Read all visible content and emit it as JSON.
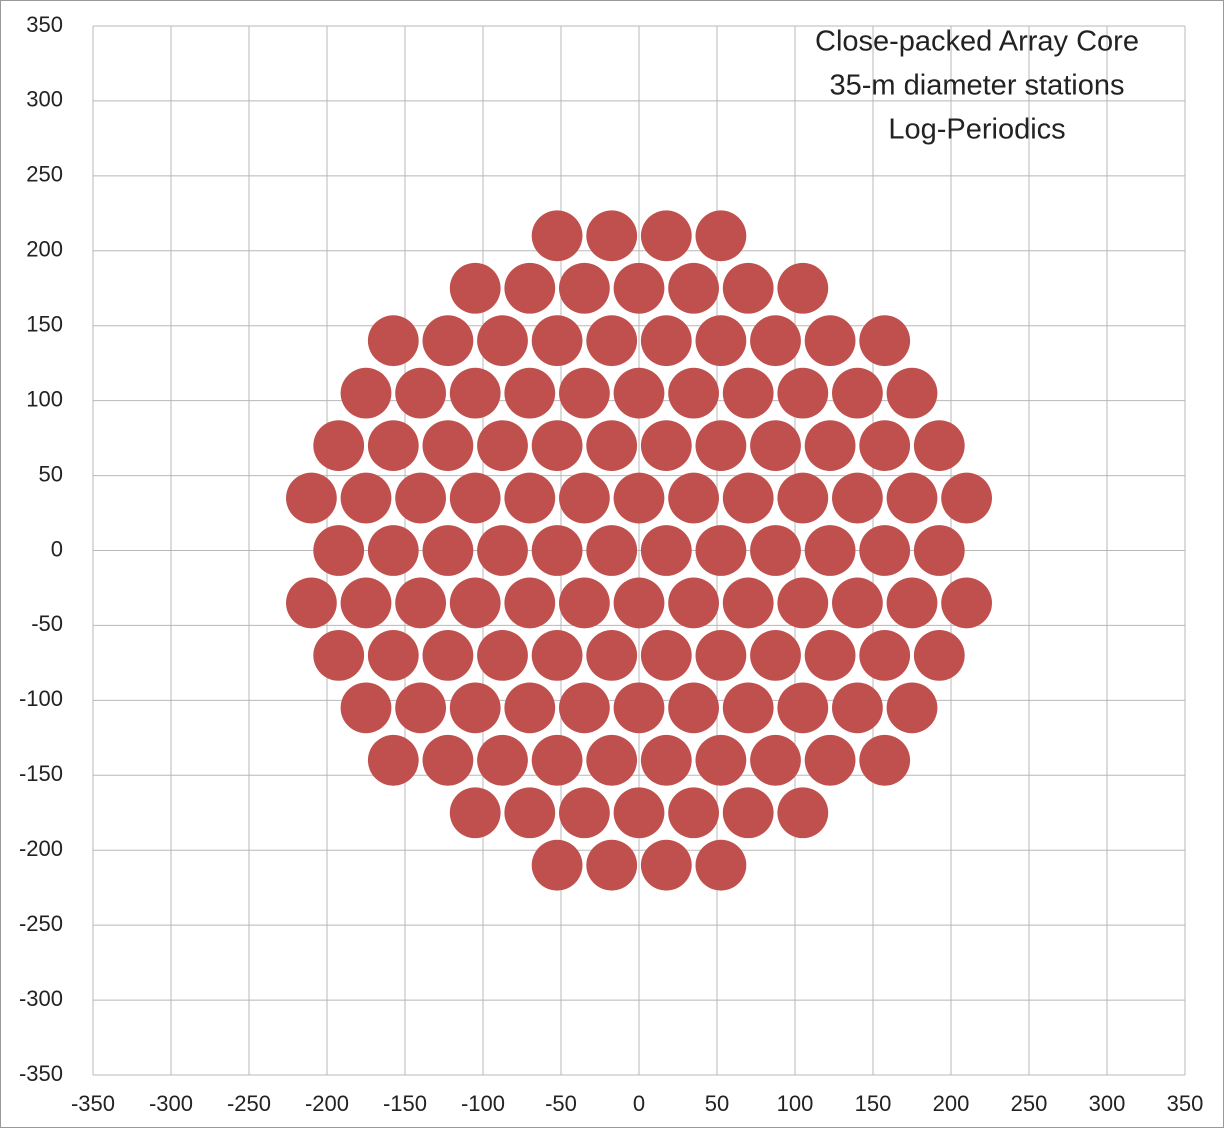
{
  "chart_data": {
    "type": "scatter",
    "annotation": [
      "Close-packed Array Core",
      "35-m diameter stations",
      "Log-Periodics"
    ],
    "color": "#c0504d",
    "marker_size": 35,
    "grid": true,
    "xlim": [
      -350,
      350
    ],
    "ylim": [
      -350,
      350
    ],
    "xticks": [
      -350,
      -300,
      -250,
      -200,
      -150,
      -100,
      -50,
      0,
      50,
      100,
      150,
      200,
      250,
      300,
      350
    ],
    "yticks": [
      -350,
      -300,
      -250,
      -200,
      -150,
      -100,
      -50,
      0,
      50,
      100,
      150,
      200,
      250,
      300,
      350
    ],
    "x": [
      -52.5,
      -17.5,
      17.5,
      52.5,
      -105,
      -70,
      -35,
      0,
      35,
      70,
      105,
      -157.5,
      -122.5,
      -87.5,
      -52.5,
      -17.5,
      17.5,
      52.5,
      87.5,
      122.5,
      157.5,
      -175,
      -140,
      -105,
      -70,
      -35,
      0,
      35,
      70,
      105,
      140,
      175,
      -192.5,
      -157.5,
      -122.5,
      -87.5,
      -52.5,
      -17.5,
      17.5,
      52.5,
      87.5,
      122.5,
      157.5,
      192.5,
      -210,
      -175,
      -140,
      -105,
      -70,
      -35,
      0,
      35,
      70,
      105,
      140,
      175,
      210,
      -192.5,
      -157.5,
      -122.5,
      -87.5,
      -52.5,
      -17.5,
      17.5,
      52.5,
      87.5,
      122.5,
      157.5,
      192.5,
      -210,
      -175,
      -140,
      -105,
      -70,
      -35,
      0,
      35,
      70,
      105,
      140,
      175,
      210,
      -192.5,
      -157.5,
      -122.5,
      -87.5,
      -52.5,
      -17.5,
      17.5,
      52.5,
      87.5,
      122.5,
      157.5,
      192.5,
      -175,
      -140,
      -105,
      -70,
      -35,
      0,
      35,
      70,
      105,
      140,
      175,
      -157.5,
      -122.5,
      -87.5,
      -52.5,
      -17.5,
      17.5,
      52.5,
      87.5,
      122.5,
      157.5,
      -105,
      -70,
      -35,
      0,
      35,
      70,
      105,
      -52.5,
      -17.5,
      17.5,
      52.5
    ],
    "values": [
      210,
      210,
      210,
      210,
      175,
      175,
      175,
      175,
      175,
      175,
      175,
      140,
      140,
      140,
      140,
      140,
      140,
      140,
      140,
      140,
      140,
      105,
      105,
      105,
      105,
      105,
      105,
      105,
      105,
      105,
      105,
      105,
      70,
      70,
      70,
      70,
      70,
      70,
      70,
      70,
      70,
      70,
      70,
      70,
      35,
      35,
      35,
      35,
      35,
      35,
      35,
      35,
      35,
      35,
      35,
      35,
      35,
      0,
      0,
      0,
      0,
      0,
      0,
      0,
      0,
      0,
      0,
      0,
      0,
      -35,
      -35,
      -35,
      -35,
      -35,
      -35,
      -35,
      -35,
      -35,
      -35,
      -35,
      -35,
      -35,
      -70,
      -70,
      -70,
      -70,
      -70,
      -70,
      -70,
      -70,
      -70,
      -70,
      -70,
      -70,
      -105,
      -105,
      -105,
      -105,
      -105,
      -105,
      -105,
      -105,
      -105,
      -105,
      -105,
      -140,
      -140,
      -140,
      -140,
      -140,
      -140,
      -140,
      -140,
      -140,
      -140,
      -175,
      -175,
      -175,
      -175,
      -175,
      -175,
      -175,
      -210,
      -210,
      -210,
      -210
    ]
  }
}
